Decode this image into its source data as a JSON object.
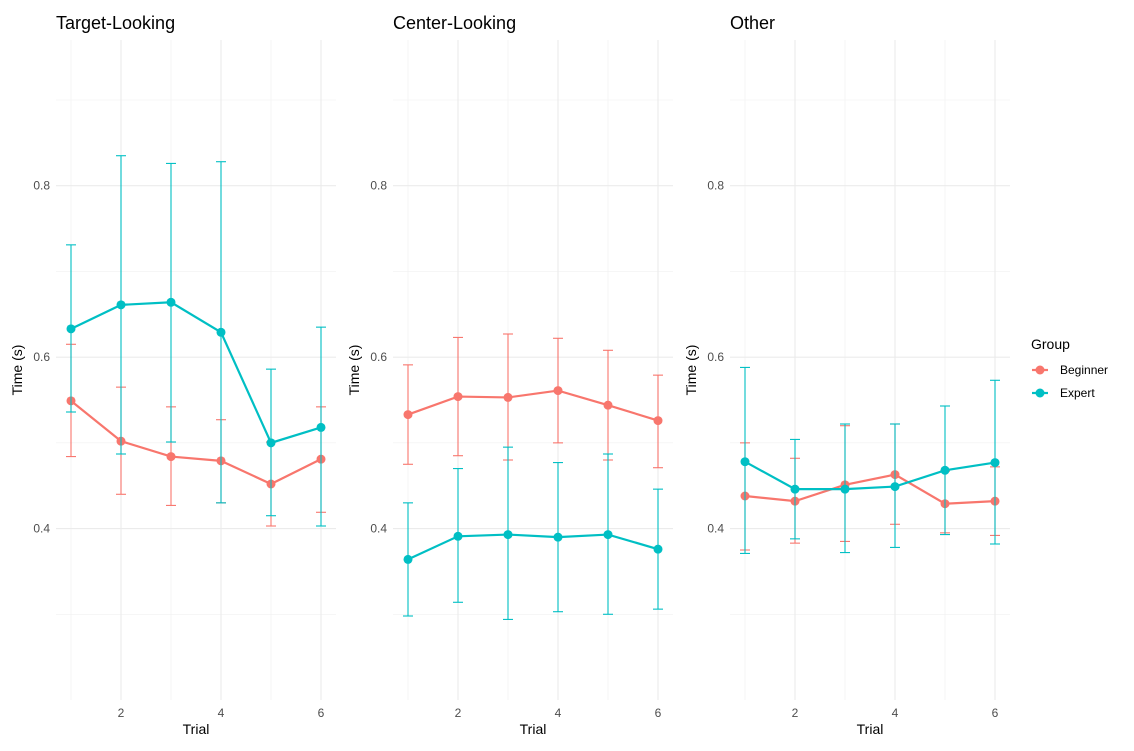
{
  "chart_data": {
    "type": "line",
    "facet_titles": [
      "Target-Looking",
      "Center-Looking",
      "Other"
    ],
    "xlabel": "Trial",
    "ylabel": "Time (s)",
    "x": [
      1,
      2,
      3,
      4,
      5,
      6
    ],
    "x_ticks": [
      "2",
      "4",
      "6"
    ],
    "y_ticks": [
      "0.4",
      "0.6",
      "0.8"
    ],
    "xlim": [
      0.7,
      6.3
    ],
    "ylim": [
      0.2,
      0.97
    ],
    "grid": true,
    "legend": {
      "title": "Group",
      "placement": "right",
      "entries": [
        "Beginner",
        "Expert"
      ]
    },
    "colors": {
      "Beginner": "#F8766D",
      "Expert": "#00BFC4"
    },
    "panels": [
      {
        "title": "Target-Looking",
        "series": [
          {
            "name": "Beginner",
            "values": [
              0.549,
              0.502,
              0.484,
              0.479,
              0.452,
              0.481
            ],
            "lower": [
              0.484,
              0.44,
              0.427,
              0.43,
              0.403,
              0.419
            ],
            "upper": [
              0.615,
              0.565,
              0.542,
              0.527,
              0.501,
              0.542
            ]
          },
          {
            "name": "Expert",
            "values": [
              0.633,
              0.661,
              0.664,
              0.629,
              0.5,
              0.518
            ],
            "lower": [
              0.536,
              0.487,
              0.501,
              0.43,
              0.415,
              0.403
            ],
            "upper": [
              0.731,
              0.835,
              0.826,
              0.828,
              0.586,
              0.635
            ]
          }
        ]
      },
      {
        "title": "Center-Looking",
        "series": [
          {
            "name": "Beginner",
            "values": [
              0.533,
              0.554,
              0.553,
              0.561,
              0.544,
              0.526
            ],
            "lower": [
              0.475,
              0.485,
              0.48,
              0.5,
              0.48,
              0.471
            ],
            "upper": [
              0.591,
              0.623,
              0.627,
              0.622,
              0.608,
              0.579
            ]
          },
          {
            "name": "Expert",
            "values": [
              0.364,
              0.391,
              0.393,
              0.39,
              0.393,
              0.376
            ],
            "lower": [
              0.298,
              0.314,
              0.294,
              0.303,
              0.3,
              0.306
            ],
            "upper": [
              0.43,
              0.47,
              0.495,
              0.477,
              0.487,
              0.446
            ]
          }
        ]
      },
      {
        "title": "Other",
        "series": [
          {
            "name": "Beginner",
            "values": [
              0.438,
              0.432,
              0.451,
              0.463,
              0.429,
              0.432
            ],
            "lower": [
              0.375,
              0.383,
              0.385,
              0.405,
              0.395,
              0.392
            ],
            "upper": [
              0.5,
              0.482,
              0.52,
              0.522,
              0.467,
              0.472
            ]
          },
          {
            "name": "Expert",
            "values": [
              0.478,
              0.446,
              0.446,
              0.449,
              0.468,
              0.477
            ],
            "lower": [
              0.371,
              0.388,
              0.372,
              0.378,
              0.393,
              0.382
            ],
            "upper": [
              0.588,
              0.504,
              0.522,
              0.522,
              0.543,
              0.573
            ]
          }
        ]
      }
    ]
  }
}
